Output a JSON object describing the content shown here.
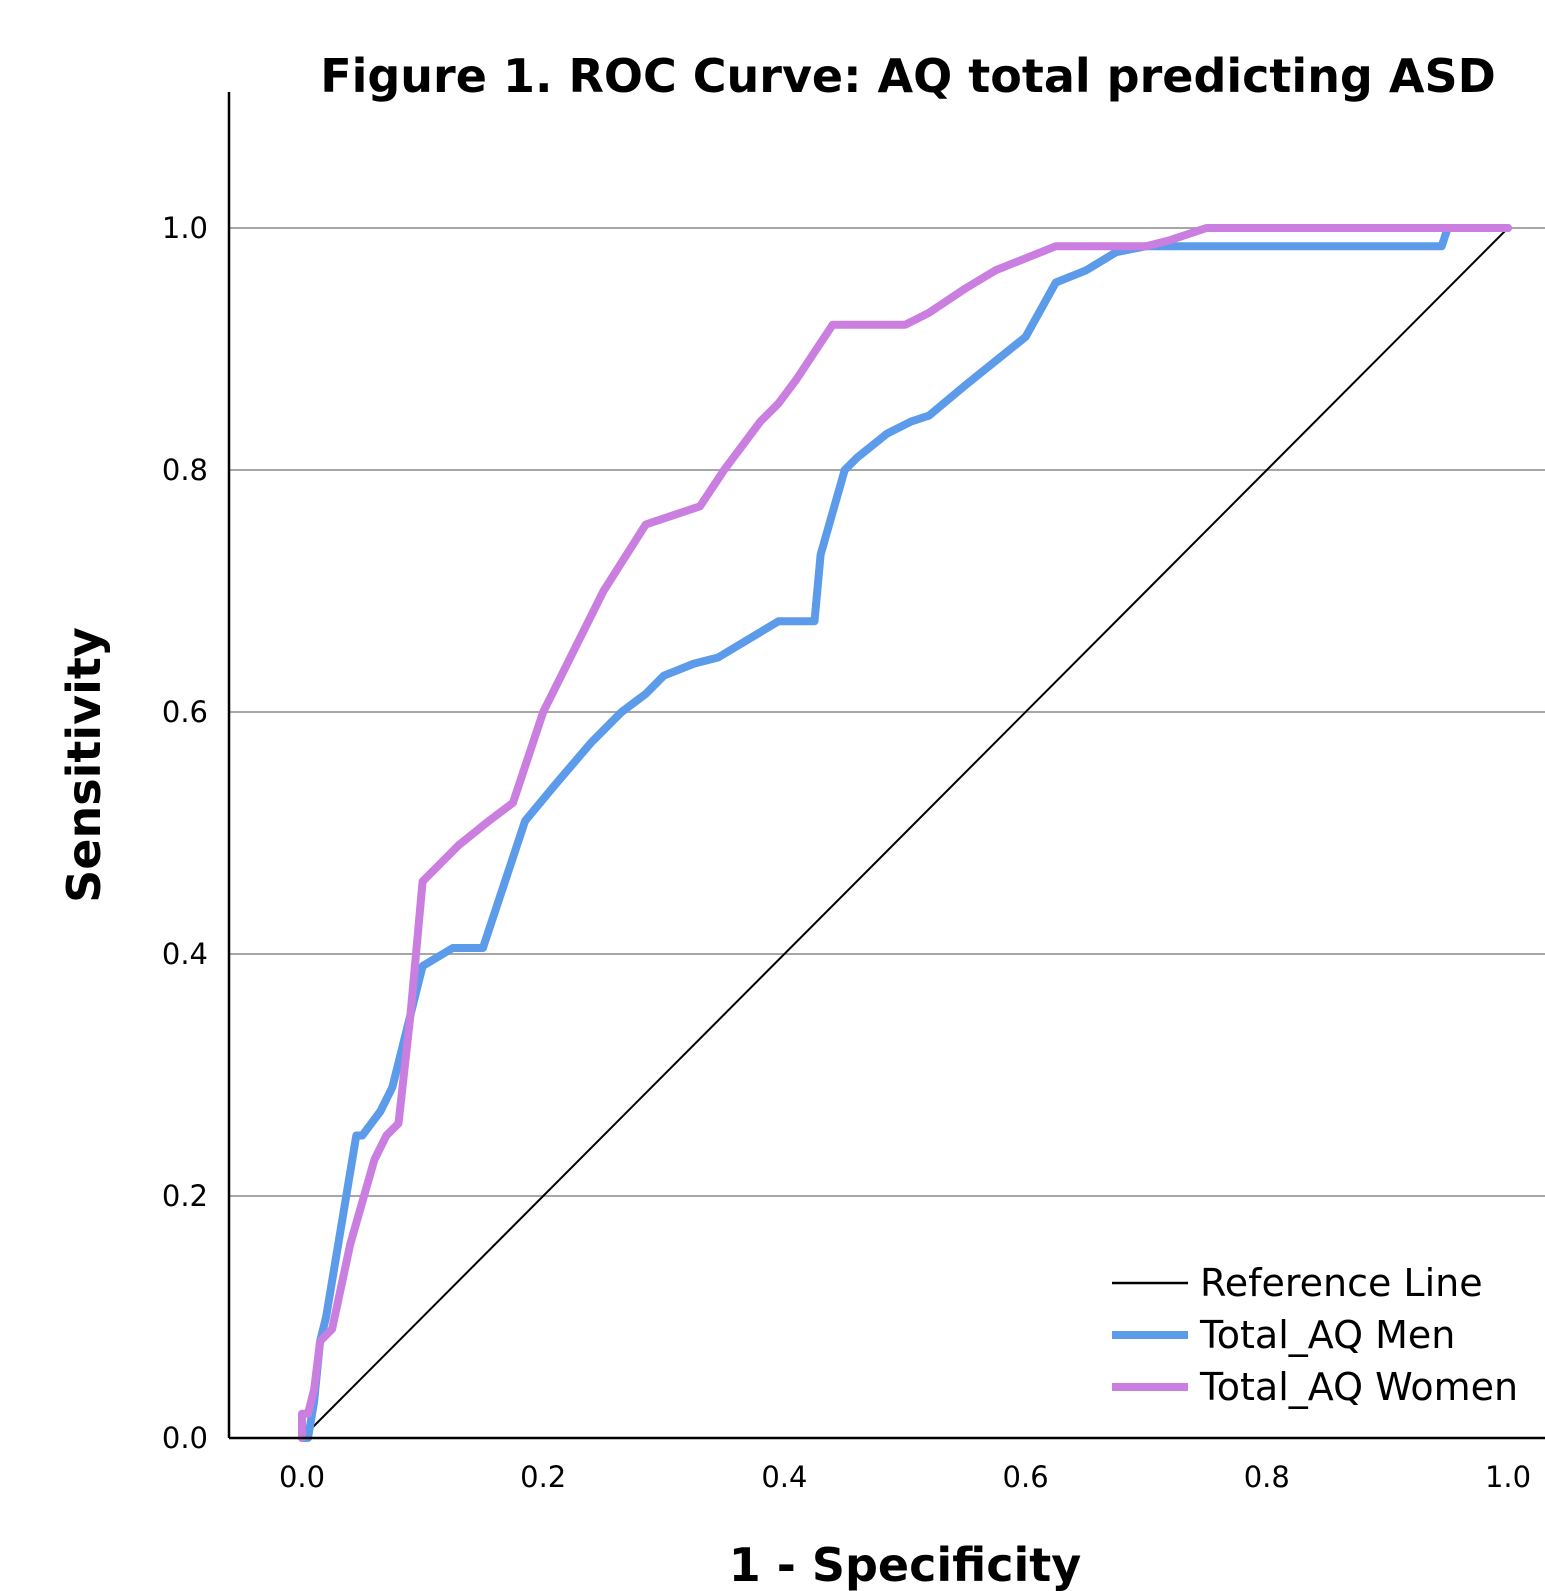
{
  "chart_data": {
    "type": "line",
    "title": "Figure 1. ROC Curve: AQ total predicting ASD",
    "xlabel": "1 - Specificity",
    "ylabel": "Sensitivity",
    "xlim": [
      0.0,
      1.0
    ],
    "ylim": [
      0.0,
      1.1
    ],
    "x_ticks": [
      "0.0",
      "0.2",
      "0.4",
      "0.6",
      "0.8",
      "1.0"
    ],
    "y_ticks": [
      "0.0",
      "0.2",
      "0.4",
      "0.6",
      "0.8",
      "1.0"
    ],
    "grid": "horizontal",
    "legend_position": "bottom-right",
    "series": [
      {
        "name": "Reference Line",
        "color": "#000000",
        "style": "thin",
        "x": [
          0.0,
          1.0
        ],
        "y": [
          0.0,
          1.0
        ]
      },
      {
        "name": "Total_AQ Men",
        "color": "#5b9bea",
        "style": "thick",
        "x": [
          0.0,
          0.005,
          0.01,
          0.015,
          0.02,
          0.03,
          0.045,
          0.05,
          0.065,
          0.075,
          0.085,
          0.1,
          0.125,
          0.15,
          0.165,
          0.185,
          0.21,
          0.24,
          0.265,
          0.285,
          0.3,
          0.325,
          0.345,
          0.37,
          0.395,
          0.425,
          0.43,
          0.45,
          0.46,
          0.485,
          0.505,
          0.52,
          0.55,
          0.575,
          0.6,
          0.625,
          0.65,
          0.675,
          0.7,
          0.72,
          0.73,
          0.8,
          0.9,
          0.945,
          0.95,
          1.0
        ],
        "y": [
          0.0,
          0.0,
          0.03,
          0.08,
          0.1,
          0.16,
          0.25,
          0.25,
          0.27,
          0.29,
          0.33,
          0.39,
          0.405,
          0.405,
          0.45,
          0.51,
          0.54,
          0.575,
          0.6,
          0.615,
          0.63,
          0.64,
          0.645,
          0.66,
          0.675,
          0.675,
          0.73,
          0.8,
          0.81,
          0.83,
          0.84,
          0.845,
          0.87,
          0.89,
          0.91,
          0.955,
          0.965,
          0.98,
          0.985,
          0.985,
          0.985,
          0.985,
          0.985,
          0.985,
          1.0,
          1.0
        ]
      },
      {
        "name": "Total_AQ Women",
        "color": "#c97ee0",
        "style": "thick",
        "x": [
          0.0,
          0.0,
          0.005,
          0.01,
          0.015,
          0.025,
          0.04,
          0.06,
          0.07,
          0.08,
          0.09,
          0.1,
          0.11,
          0.13,
          0.155,
          0.175,
          0.2,
          0.23,
          0.25,
          0.285,
          0.3,
          0.33,
          0.35,
          0.365,
          0.38,
          0.395,
          0.41,
          0.44,
          0.46,
          0.5,
          0.51,
          0.52,
          0.55,
          0.575,
          0.6,
          0.625,
          0.65,
          0.7,
          0.72,
          0.75,
          0.8,
          0.9,
          0.95,
          1.0
        ],
        "y": [
          0.0,
          0.02,
          0.02,
          0.04,
          0.08,
          0.09,
          0.16,
          0.23,
          0.25,
          0.26,
          0.35,
          0.46,
          0.47,
          0.49,
          0.51,
          0.525,
          0.6,
          0.66,
          0.7,
          0.755,
          0.76,
          0.77,
          0.8,
          0.82,
          0.84,
          0.855,
          0.875,
          0.92,
          0.92,
          0.92,
          0.925,
          0.93,
          0.95,
          0.965,
          0.975,
          0.985,
          0.985,
          0.985,
          0.99,
          1.0,
          1.0,
          1.0,
          1.0,
          1.0
        ]
      }
    ]
  }
}
